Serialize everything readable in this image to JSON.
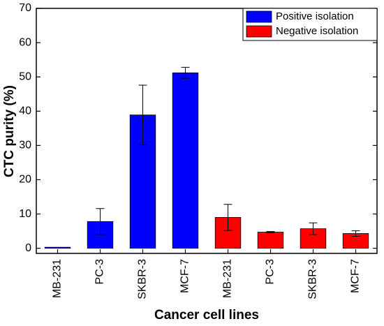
{
  "chart_data": {
    "type": "bar",
    "categories": [
      "MB-231",
      "PC-3",
      "SKBR-3",
      "MCF-7",
      "MB-231",
      "PC-3",
      "SKBR-3",
      "MCF-7"
    ],
    "series": [
      {
        "name": "Positive isolation",
        "color": "#0000ff",
        "values": [
          0.3,
          7.8,
          38.9,
          51.2,
          null,
          null,
          null,
          null
        ],
        "errors": [
          0,
          3.8,
          8.7,
          1.6,
          null,
          null,
          null,
          null
        ]
      },
      {
        "name": "Negative isolation",
        "color": "#ff0000",
        "values": [
          null,
          null,
          null,
          null,
          9.0,
          4.7,
          5.7,
          4.3
        ],
        "errors": [
          null,
          null,
          null,
          null,
          3.8,
          0.2,
          1.7,
          0.8
        ]
      }
    ],
    "x_label": "Cancer cell lines",
    "y_label": "CTC purity (%)",
    "ylim": [
      -1.5,
      70
    ],
    "yticks": [
      0,
      10,
      20,
      30,
      40,
      50,
      60,
      70
    ],
    "legend": "upper right"
  }
}
